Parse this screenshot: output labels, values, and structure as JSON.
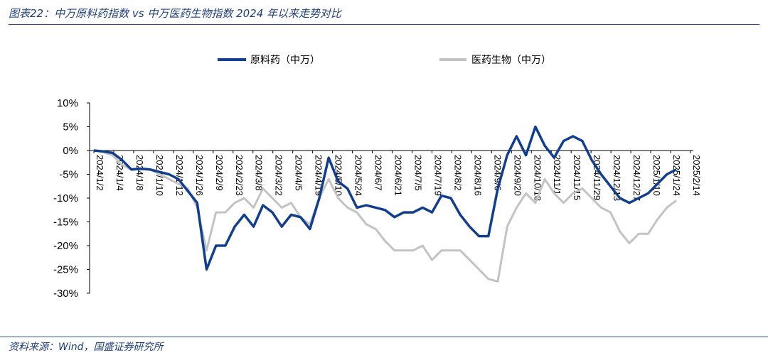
{
  "header": {
    "title": "图表22：中万原料药指数 vs 中万医药生物指数 2024 年以来走势对比"
  },
  "footer": {
    "source": "资料来源：Wind，国盛证券研究所"
  },
  "colors": {
    "raw": "#123e8e",
    "pharma": "#c3c3c3",
    "accent": "#1f3f7a"
  },
  "chart_data": {
    "type": "line",
    "ylim": [
      -0.3,
      0.1
    ],
    "yticks": [
      0.1,
      0.05,
      0,
      -0.05,
      -0.1,
      -0.15,
      -0.2,
      -0.25,
      -0.3
    ],
    "ytick_labels": [
      "10%",
      "5%",
      "0%",
      "-5%",
      "-10%",
      "-15%",
      "-20%",
      "-25%",
      "-30%"
    ],
    "x_tick_labels": [
      "2024/1/2",
      "2024/1/4",
      "2024/1/8",
      "2024/1/10",
      "2024/1/12",
      "2024/1/26",
      "2024/2/9",
      "2024/2/23",
      "2024/3/8",
      "2024/3/22",
      "2024/4/5",
      "2024/4/19",
      "2024/5/10",
      "2024/5/24",
      "2024/6/7",
      "2024/6/21",
      "2024/7/5",
      "2024/7/19",
      "2024/8/2",
      "2024/8/16",
      "2024/9/6",
      "2024/9/20",
      "2024/10/18",
      "2024/11/1",
      "2024/11/15",
      "2024/11/29",
      "2024/12/13",
      "2024/12/27",
      "2025/1/10",
      "2025/1/24",
      "2025/2/14"
    ],
    "legend": [
      "原料药（中万）",
      "医药生物（中万）"
    ],
    "series": [
      {
        "name": "原料药（中万）",
        "values": [
          0,
          -0.002,
          -0.005,
          -0.02,
          -0.04,
          -0.038,
          -0.04,
          -0.045,
          -0.05,
          -0.06,
          -0.085,
          -0.11,
          -0.25,
          -0.2,
          -0.2,
          -0.16,
          -0.135,
          -0.16,
          -0.115,
          -0.13,
          -0.16,
          -0.135,
          -0.14,
          -0.165,
          -0.1,
          -0.015,
          -0.065,
          -0.08,
          -0.12,
          -0.115,
          -0.12,
          -0.125,
          -0.14,
          -0.13,
          -0.13,
          -0.12,
          -0.13,
          -0.095,
          -0.1,
          -0.135,
          -0.16,
          -0.18,
          -0.18,
          -0.08,
          -0.01,
          0.03,
          -0.01,
          0.05,
          0.01,
          -0.015,
          0.02,
          0.03,
          0.02,
          -0.02,
          -0.05,
          -0.075,
          -0.1,
          -0.11,
          -0.1,
          -0.09,
          -0.07,
          -0.05,
          -0.04
        ]
      },
      {
        "name": "医药生物（中万）",
        "values": [
          0,
          -0.003,
          -0.01,
          -0.03,
          -0.04,
          -0.04,
          -0.04,
          -0.05,
          -0.06,
          -0.07,
          -0.08,
          -0.12,
          -0.21,
          -0.13,
          -0.13,
          -0.11,
          -0.1,
          -0.12,
          -0.08,
          -0.1,
          -0.12,
          -0.11,
          -0.14,
          -0.155,
          -0.1,
          -0.06,
          -0.1,
          -0.12,
          -0.13,
          -0.155,
          -0.165,
          -0.19,
          -0.21,
          -0.21,
          -0.21,
          -0.2,
          -0.23,
          -0.21,
          -0.21,
          -0.21,
          -0.23,
          -0.25,
          -0.27,
          -0.275,
          -0.16,
          -0.12,
          -0.09,
          -0.11,
          -0.06,
          -0.09,
          -0.11,
          -0.09,
          -0.08,
          -0.1,
          -0.12,
          -0.13,
          -0.17,
          -0.195,
          -0.175,
          -0.175,
          -0.145,
          -0.12,
          -0.105
        ]
      }
    ]
  }
}
